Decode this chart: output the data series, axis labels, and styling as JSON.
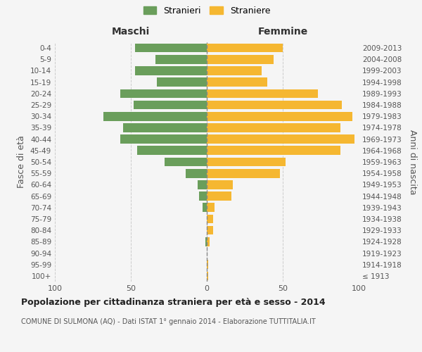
{
  "age_groups": [
    "100+",
    "95-99",
    "90-94",
    "85-89",
    "80-84",
    "75-79",
    "70-74",
    "65-69",
    "60-64",
    "55-59",
    "50-54",
    "45-49",
    "40-44",
    "35-39",
    "30-34",
    "25-29",
    "20-24",
    "15-19",
    "10-14",
    "5-9",
    "0-4"
  ],
  "birth_years": [
    "≤ 1913",
    "1914-1918",
    "1919-1923",
    "1924-1928",
    "1929-1933",
    "1934-1938",
    "1939-1943",
    "1944-1948",
    "1949-1953",
    "1954-1958",
    "1959-1963",
    "1964-1968",
    "1969-1973",
    "1974-1978",
    "1979-1983",
    "1984-1988",
    "1989-1993",
    "1994-1998",
    "1999-2003",
    "2004-2008",
    "2009-2013"
  ],
  "maschi": [
    0,
    0,
    0,
    1,
    0,
    0,
    3,
    5,
    6,
    14,
    28,
    46,
    57,
    55,
    68,
    48,
    57,
    33,
    47,
    34,
    47
  ],
  "femmine": [
    1,
    1,
    0,
    2,
    4,
    4,
    5,
    16,
    17,
    48,
    52,
    88,
    97,
    88,
    96,
    89,
    73,
    40,
    36,
    44,
    50
  ],
  "maschi_color": "#6a9e5b",
  "femmine_color": "#f5b731",
  "background_color": "#f5f5f5",
  "title": "Popolazione per cittadinanza straniera per età e sesso - 2014",
  "subtitle": "COMUNE DI SULMONA (AQ) - Dati ISTAT 1° gennaio 2014 - Elaborazione TUTTITALIA.IT",
  "ylabel_left": "Fasce di età",
  "ylabel_right": "Anni di nascita",
  "xlabel_left": "Maschi",
  "xlabel_right": "Femmine",
  "legend_maschi": "Stranieri",
  "legend_femmine": "Straniere",
  "xlim": 100,
  "grid_color": "#cccccc",
  "dashed_line_color": "#888888"
}
